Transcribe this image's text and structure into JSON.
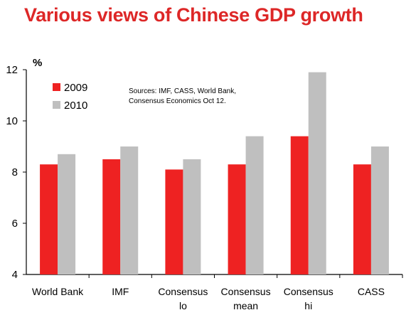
{
  "chart_data": {
    "type": "bar",
    "title": "Various views of Chinese GDP growth",
    "unit_label": "%",
    "categories": [
      [
        "World Bank"
      ],
      [
        "IMF"
      ],
      [
        "Consensus",
        "lo"
      ],
      [
        "Consensus",
        "mean"
      ],
      [
        "Consensus",
        "hi"
      ],
      [
        "CASS"
      ]
    ],
    "series": [
      {
        "name": "2009",
        "color": "#ee2222",
        "values": [
          8.3,
          8.5,
          8.1,
          8.3,
          9.4,
          8.3
        ]
      },
      {
        "name": "2010",
        "color": "#bfbfbf",
        "values": [
          8.7,
          9.0,
          8.5,
          9.4,
          11.9,
          9.0
        ]
      }
    ],
    "ylim": [
      4,
      12
    ],
    "yticks": [
      "4",
      "6",
      "8",
      "10",
      "12"
    ],
    "grid": false,
    "legend_position": "top-left",
    "source_lines": [
      "Sources:  IMF, CASS, World Bank,",
      "Consensus Economics Oct 12."
    ]
  }
}
